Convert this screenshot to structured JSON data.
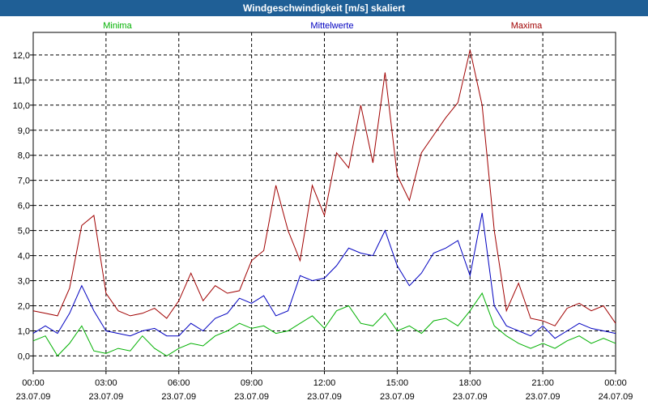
{
  "window": {
    "title": "Windgeschwindigkeit [m/s] skaliert"
  },
  "chart_data": {
    "type": "line",
    "title": "Windgeschwindigkeit [m/s] skaliert",
    "xlabel": "",
    "ylabel": "",
    "ylim": [
      -0.6,
      12.9
    ],
    "x_ticks": [
      {
        "time": "00:00",
        "date": "23.07.09"
      },
      {
        "time": "03:00",
        "date": "23.07.09"
      },
      {
        "time": "06:00",
        "date": "23.07.09"
      },
      {
        "time": "09:00",
        "date": "23.07.09"
      },
      {
        "time": "12:00",
        "date": "23.07.09"
      },
      {
        "time": "15:00",
        "date": "23.07.09"
      },
      {
        "time": "18:00",
        "date": "23.07.09"
      },
      {
        "time": "21:00",
        "date": "23.07.09"
      },
      {
        "time": "00:00",
        "date": "24.07.09"
      }
    ],
    "y_ticks": [
      "0,0",
      "1,0",
      "2,0",
      "3,0",
      "4,0",
      "5,0",
      "6,0",
      "7,0",
      "8,0",
      "9,0",
      "10,0",
      "11,0",
      "12,0"
    ],
    "x_hours": [
      0,
      0.5,
      1,
      1.5,
      2,
      2.5,
      3,
      3.5,
      4,
      4.5,
      5,
      5.5,
      6,
      6.5,
      7,
      7.5,
      8,
      8.5,
      9,
      9.5,
      10,
      10.5,
      11,
      11.5,
      12,
      12.5,
      13,
      13.5,
      14,
      14.5,
      15,
      15.5,
      16,
      16.5,
      17,
      17.5,
      18,
      18.5,
      19,
      19.5,
      20,
      20.5,
      21,
      21.5,
      22,
      22.5,
      23,
      23.5,
      24
    ],
    "series": [
      {
        "name": "Minima",
        "color": "#00b000",
        "values": [
          0.6,
          0.8,
          0.0,
          0.5,
          1.2,
          0.2,
          0.1,
          0.3,
          0.2,
          0.8,
          0.3,
          0.0,
          0.3,
          0.5,
          0.4,
          0.8,
          1.0,
          1.3,
          1.1,
          1.2,
          0.9,
          1.0,
          1.3,
          1.6,
          1.1,
          1.8,
          2.0,
          1.3,
          1.2,
          1.7,
          1.0,
          1.2,
          0.9,
          1.4,
          1.5,
          1.2,
          1.8,
          2.5,
          1.2,
          0.8,
          0.5,
          0.3,
          0.5,
          0.3,
          0.6,
          0.8,
          0.5,
          0.7,
          0.5
        ]
      },
      {
        "name": "Mittelwerte",
        "color": "#0000c0",
        "values": [
          0.9,
          1.2,
          0.9,
          1.7,
          2.8,
          1.8,
          1.0,
          0.9,
          0.8,
          1.0,
          1.1,
          0.8,
          0.8,
          1.3,
          1.0,
          1.5,
          1.7,
          2.3,
          2.1,
          2.4,
          1.6,
          1.8,
          3.2,
          3.0,
          3.1,
          3.6,
          4.3,
          4.1,
          4.0,
          5.0,
          3.6,
          2.8,
          3.3,
          4.1,
          4.3,
          4.6,
          3.2,
          5.7,
          2.0,
          1.2,
          1.0,
          0.8,
          1.2,
          0.7,
          1.0,
          1.3,
          1.1,
          1.0,
          0.9
        ]
      },
      {
        "name": "Maxima",
        "color": "#a00000",
        "values": [
          1.8,
          1.7,
          1.6,
          2.7,
          5.2,
          5.6,
          2.5,
          1.8,
          1.6,
          1.7,
          1.9,
          1.5,
          2.2,
          3.3,
          2.2,
          2.8,
          2.5,
          2.6,
          3.8,
          4.2,
          6.8,
          5.0,
          3.8,
          6.8,
          5.6,
          8.1,
          7.5,
          10.0,
          7.7,
          11.3,
          7.2,
          6.2,
          8.1,
          8.8,
          9.5,
          10.1,
          12.2,
          10.0,
          5.0,
          1.8,
          2.9,
          1.5,
          1.4,
          1.2,
          1.9,
          2.1,
          1.8,
          2.0,
          1.3
        ]
      }
    ],
    "legend": [
      "Minima",
      "Mittelwerte",
      "Maxima"
    ]
  }
}
